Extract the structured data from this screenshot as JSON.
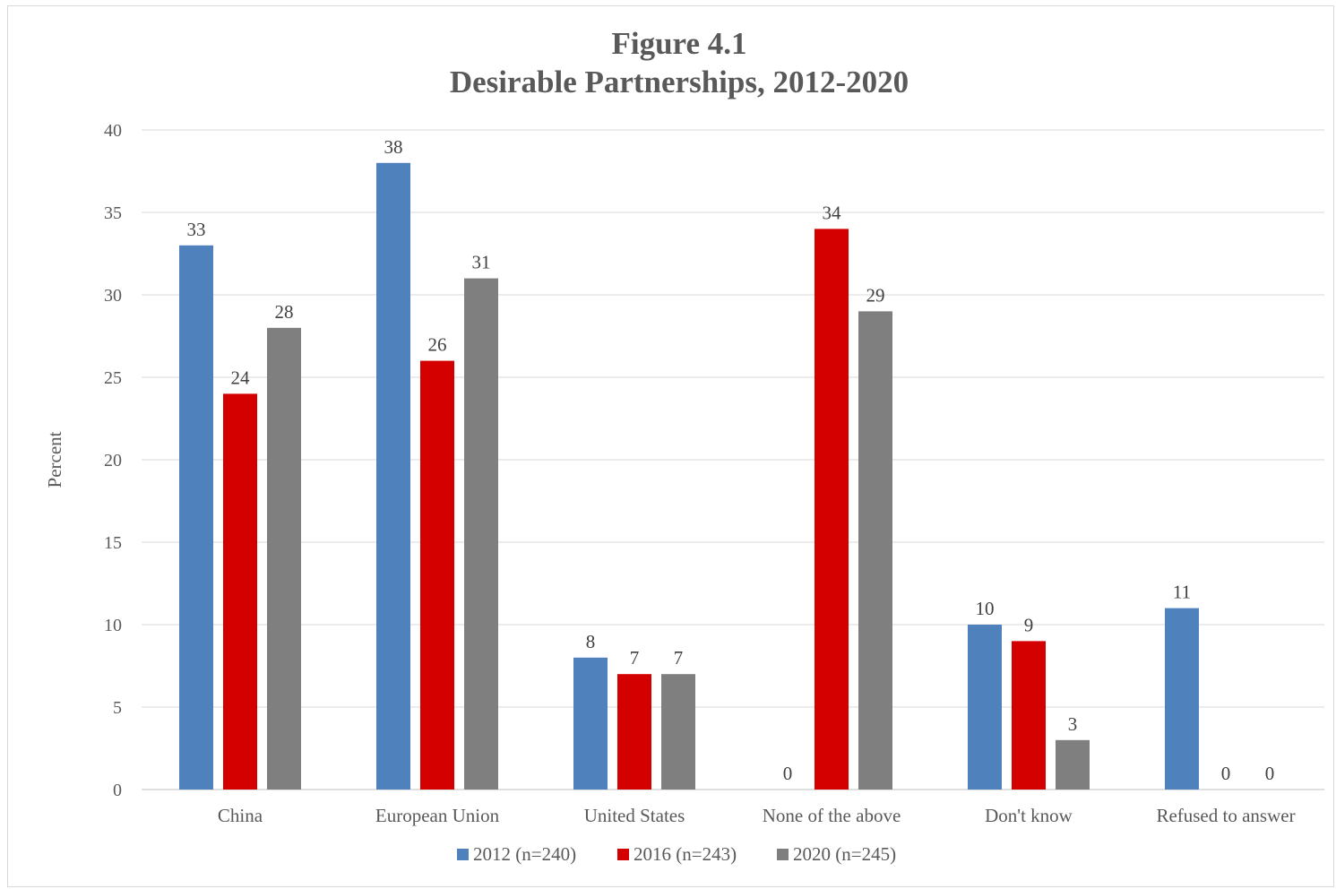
{
  "chart_data": {
    "type": "bar",
    "title": [
      "Figure 4.1",
      "Desirable Partnerships, 2012-2020"
    ],
    "ylabel": "Percent",
    "xlabel": "",
    "ylim": [
      0,
      40
    ],
    "yticks": [
      0,
      5,
      10,
      15,
      20,
      25,
      30,
      35,
      40
    ],
    "grid": true,
    "legend_position": "bottom",
    "categories": [
      "China",
      "European Union",
      "United States",
      "None of the above",
      "Don't know",
      "Refused to answer"
    ],
    "series": [
      {
        "name": "2012 (n=240)",
        "color": "#4f81bd",
        "values": [
          33,
          38,
          8,
          0,
          10,
          11
        ]
      },
      {
        "name": "2016 (n=243)",
        "color": "#d40000",
        "values": [
          24,
          26,
          7,
          34,
          9,
          0
        ]
      },
      {
        "name": "2020 (n=245)",
        "color": "#7f7f7f",
        "values": [
          28,
          31,
          7,
          29,
          3,
          0
        ]
      }
    ]
  }
}
